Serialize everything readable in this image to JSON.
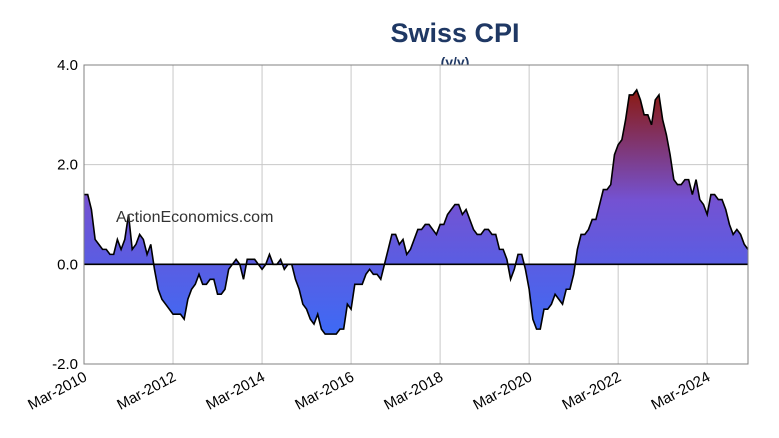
{
  "chart_data": {
    "type": "area",
    "title": "Swiss CPI",
    "subtitle": "(y/y)",
    "annotation": "ActionEconomics.com",
    "x": [
      "2010-03",
      "2010-04",
      "2010-05",
      "2010-06",
      "2010-07",
      "2010-08",
      "2010-09",
      "2010-10",
      "2010-11",
      "2010-12",
      "2011-01",
      "2011-02",
      "2011-03",
      "2011-04",
      "2011-05",
      "2011-06",
      "2011-07",
      "2011-08",
      "2011-09",
      "2011-10",
      "2011-11",
      "2011-12",
      "2012-01",
      "2012-02",
      "2012-03",
      "2012-04",
      "2012-05",
      "2012-06",
      "2012-07",
      "2012-08",
      "2012-09",
      "2012-10",
      "2012-11",
      "2012-12",
      "2013-01",
      "2013-02",
      "2013-03",
      "2013-04",
      "2013-05",
      "2013-06",
      "2013-07",
      "2013-08",
      "2013-09",
      "2013-10",
      "2013-11",
      "2013-12",
      "2014-01",
      "2014-02",
      "2014-03",
      "2014-04",
      "2014-05",
      "2014-06",
      "2014-07",
      "2014-08",
      "2014-09",
      "2014-10",
      "2014-11",
      "2014-12",
      "2015-01",
      "2015-02",
      "2015-03",
      "2015-04",
      "2015-05",
      "2015-06",
      "2015-07",
      "2015-08",
      "2015-09",
      "2015-10",
      "2015-11",
      "2015-12",
      "2016-01",
      "2016-02",
      "2016-03",
      "2016-04",
      "2016-05",
      "2016-06",
      "2016-07",
      "2016-08",
      "2016-09",
      "2016-10",
      "2016-11",
      "2016-12",
      "2017-01",
      "2017-02",
      "2017-03",
      "2017-04",
      "2017-05",
      "2017-06",
      "2017-07",
      "2017-08",
      "2017-09",
      "2017-10",
      "2017-11",
      "2017-12",
      "2018-01",
      "2018-02",
      "2018-03",
      "2018-04",
      "2018-05",
      "2018-06",
      "2018-07",
      "2018-08",
      "2018-09",
      "2018-10",
      "2018-11",
      "2018-12",
      "2019-01",
      "2019-02",
      "2019-03",
      "2019-04",
      "2019-05",
      "2019-06",
      "2019-07",
      "2019-08",
      "2019-09",
      "2019-10",
      "2019-11",
      "2019-12",
      "2020-01",
      "2020-02",
      "2020-03",
      "2020-04",
      "2020-05",
      "2020-06",
      "2020-07",
      "2020-08",
      "2020-09",
      "2020-10",
      "2020-11",
      "2020-12",
      "2021-01",
      "2021-02",
      "2021-03",
      "2021-04",
      "2021-05",
      "2021-06",
      "2021-07",
      "2021-08",
      "2021-09",
      "2021-10",
      "2021-11",
      "2021-12",
      "2022-01",
      "2022-02",
      "2022-03",
      "2022-04",
      "2022-05",
      "2022-06",
      "2022-07",
      "2022-08",
      "2022-09",
      "2022-10",
      "2022-11",
      "2022-12",
      "2023-01",
      "2023-02",
      "2023-03",
      "2023-04",
      "2023-05",
      "2023-06",
      "2023-07",
      "2023-08",
      "2023-09",
      "2023-10",
      "2023-11",
      "2023-12",
      "2024-01",
      "2024-02",
      "2024-03",
      "2024-04",
      "2024-05",
      "2024-06",
      "2024-07",
      "2024-08",
      "2024-09",
      "2024-10",
      "2024-11",
      "2024-12",
      "2025-01",
      "2025-02"
    ],
    "values": [
      1.4,
      1.4,
      1.1,
      0.5,
      0.4,
      0.3,
      0.3,
      0.2,
      0.2,
      0.5,
      0.3,
      0.5,
      1.0,
      0.3,
      0.4,
      0.6,
      0.5,
      0.2,
      0.4,
      -0.1,
      -0.5,
      -0.7,
      -0.8,
      -0.9,
      -1.0,
      -1.0,
      -1.0,
      -1.1,
      -0.7,
      -0.5,
      -0.4,
      -0.2,
      -0.4,
      -0.4,
      -0.3,
      -0.3,
      -0.6,
      -0.6,
      -0.5,
      -0.1,
      0.0,
      0.1,
      0.0,
      -0.3,
      0.1,
      0.1,
      0.1,
      0.0,
      -0.1,
      0.0,
      0.2,
      0.0,
      0.0,
      0.1,
      -0.1,
      0.0,
      0.0,
      -0.3,
      -0.5,
      -0.8,
      -0.9,
      -1.1,
      -1.2,
      -1.0,
      -1.3,
      -1.4,
      -1.4,
      -1.4,
      -1.4,
      -1.3,
      -1.3,
      -0.8,
      -0.9,
      -0.4,
      -0.4,
      -0.4,
      -0.2,
      -0.1,
      -0.2,
      -0.2,
      -0.3,
      0.0,
      0.3,
      0.6,
      0.6,
      0.4,
      0.5,
      0.2,
      0.3,
      0.5,
      0.7,
      0.7,
      0.8,
      0.8,
      0.7,
      0.6,
      0.8,
      0.8,
      1.0,
      1.1,
      1.2,
      1.2,
      1.0,
      1.1,
      0.9,
      0.7,
      0.6,
      0.6,
      0.7,
      0.7,
      0.6,
      0.6,
      0.3,
      0.3,
      0.1,
      -0.3,
      -0.1,
      0.2,
      0.2,
      -0.1,
      -0.5,
      -1.1,
      -1.3,
      -1.3,
      -0.9,
      -0.9,
      -0.8,
      -0.6,
      -0.7,
      -0.8,
      -0.5,
      -0.5,
      -0.2,
      0.3,
      0.6,
      0.6,
      0.7,
      0.9,
      0.9,
      1.2,
      1.5,
      1.5,
      1.6,
      2.2,
      2.4,
      2.5,
      2.9,
      3.4,
      3.4,
      3.5,
      3.3,
      3.0,
      3.0,
      2.8,
      3.3,
      3.4,
      2.9,
      2.6,
      2.2,
      1.7,
      1.6,
      1.6,
      1.7,
      1.7,
      1.4,
      1.7,
      1.3,
      1.2,
      1.0,
      1.4,
      1.4,
      1.3,
      1.3,
      1.1,
      0.8,
      0.6,
      0.7,
      0.6,
      0.4,
      0.3
    ],
    "xticks": [
      {
        "value": "2010-03",
        "label": "Mar-2010"
      },
      {
        "value": "2012-03",
        "label": "Mar-2012"
      },
      {
        "value": "2014-03",
        "label": "Mar-2014"
      },
      {
        "value": "2016-03",
        "label": "Mar-2016"
      },
      {
        "value": "2018-03",
        "label": "Mar-2018"
      },
      {
        "value": "2020-03",
        "label": "Mar-2020"
      },
      {
        "value": "2022-03",
        "label": "Mar-2022"
      },
      {
        "value": "2024-03",
        "label": "Mar-2024"
      }
    ],
    "ylim": [
      -2,
      4
    ],
    "yticks": [
      {
        "value": 4,
        "label": "4.0"
      },
      {
        "value": 2,
        "label": "2.0"
      },
      {
        "value": 0,
        "label": "0.0"
      },
      {
        "value": -2,
        "label": "-2.0"
      }
    ],
    "grid": true,
    "colors": {
      "high": "#8b1a12",
      "mid": "#7452d2",
      "low": "#3d6af5"
    }
  }
}
